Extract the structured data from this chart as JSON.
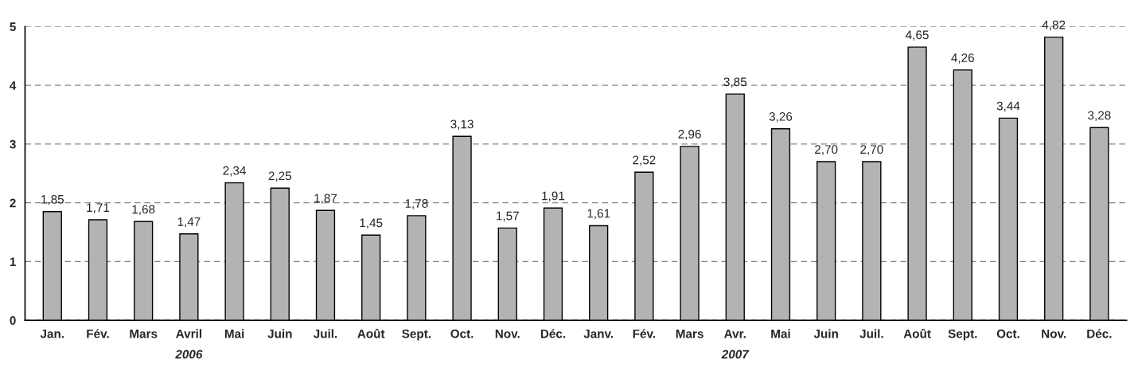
{
  "chart_data": {
    "type": "bar",
    "categories": [
      "Jan.",
      "Fév.",
      "Mars",
      "Avril",
      "Mai",
      "Juin",
      "Juil.",
      "Août",
      "Sept.",
      "Oct.",
      "Nov.",
      "Déc.",
      "Janv.",
      "Fév.",
      "Mars",
      "Avr.",
      "Mai",
      "Juin",
      "Juil.",
      "Août",
      "Sept.",
      "Oct.",
      "Nov.",
      "Déc."
    ],
    "values": [
      1.85,
      1.71,
      1.68,
      1.47,
      2.34,
      2.25,
      1.87,
      1.45,
      1.78,
      3.13,
      1.57,
      1.91,
      1.61,
      2.52,
      2.96,
      3.85,
      3.26,
      2.7,
      2.7,
      4.65,
      4.26,
      3.44,
      4.82,
      3.28
    ],
    "value_labels": [
      "1,85",
      "1,71",
      "1,68",
      "1,47",
      "2,34",
      "2,25",
      "1,87",
      "1,45",
      "1,78",
      "3,13",
      "1,57",
      "1,91",
      "1,61",
      "2,52",
      "2,96",
      "3,85",
      "3,26",
      "2,70",
      "2,70",
      "4,65",
      "4,26",
      "3,44",
      "4,82",
      "3,28"
    ],
    "color": "#b3b3b3",
    "ylim": [
      0,
      5
    ],
    "yticks": [
      0,
      1,
      2,
      3,
      4,
      5
    ],
    "grid": "y",
    "line_style": "dashed",
    "annotations": [
      "2006",
      "2007"
    ]
  }
}
